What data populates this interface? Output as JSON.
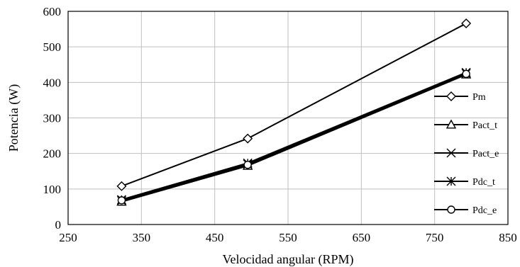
{
  "chart_data": {
    "type": "line",
    "xlabel": "Velocidad angular (RPM)",
    "ylabel": "Potencia (W)",
    "xlim": [
      250,
      850
    ],
    "ylim": [
      0,
      600
    ],
    "xticks": [
      250,
      350,
      450,
      550,
      650,
      750,
      850
    ],
    "yticks": [
      0,
      100,
      200,
      300,
      400,
      500,
      600
    ],
    "grid": true,
    "legend_position": "right",
    "x": [
      323,
      495,
      793
    ],
    "series": [
      {
        "name": "Pm",
        "marker": "diamond",
        "values": [
          108,
          242,
          566
        ]
      },
      {
        "name": "Pact_t",
        "marker": "triangle",
        "values": [
          64,
          165,
          422
        ]
      },
      {
        "name": "Pact_e",
        "marker": "x",
        "values": [
          67,
          170,
          425
        ]
      },
      {
        "name": "Pdc_t",
        "marker": "asterisk",
        "values": [
          70,
          173,
          428
        ]
      },
      {
        "name": "Pdc_e",
        "marker": "circle",
        "values": [
          68,
          168,
          424
        ]
      }
    ]
  }
}
